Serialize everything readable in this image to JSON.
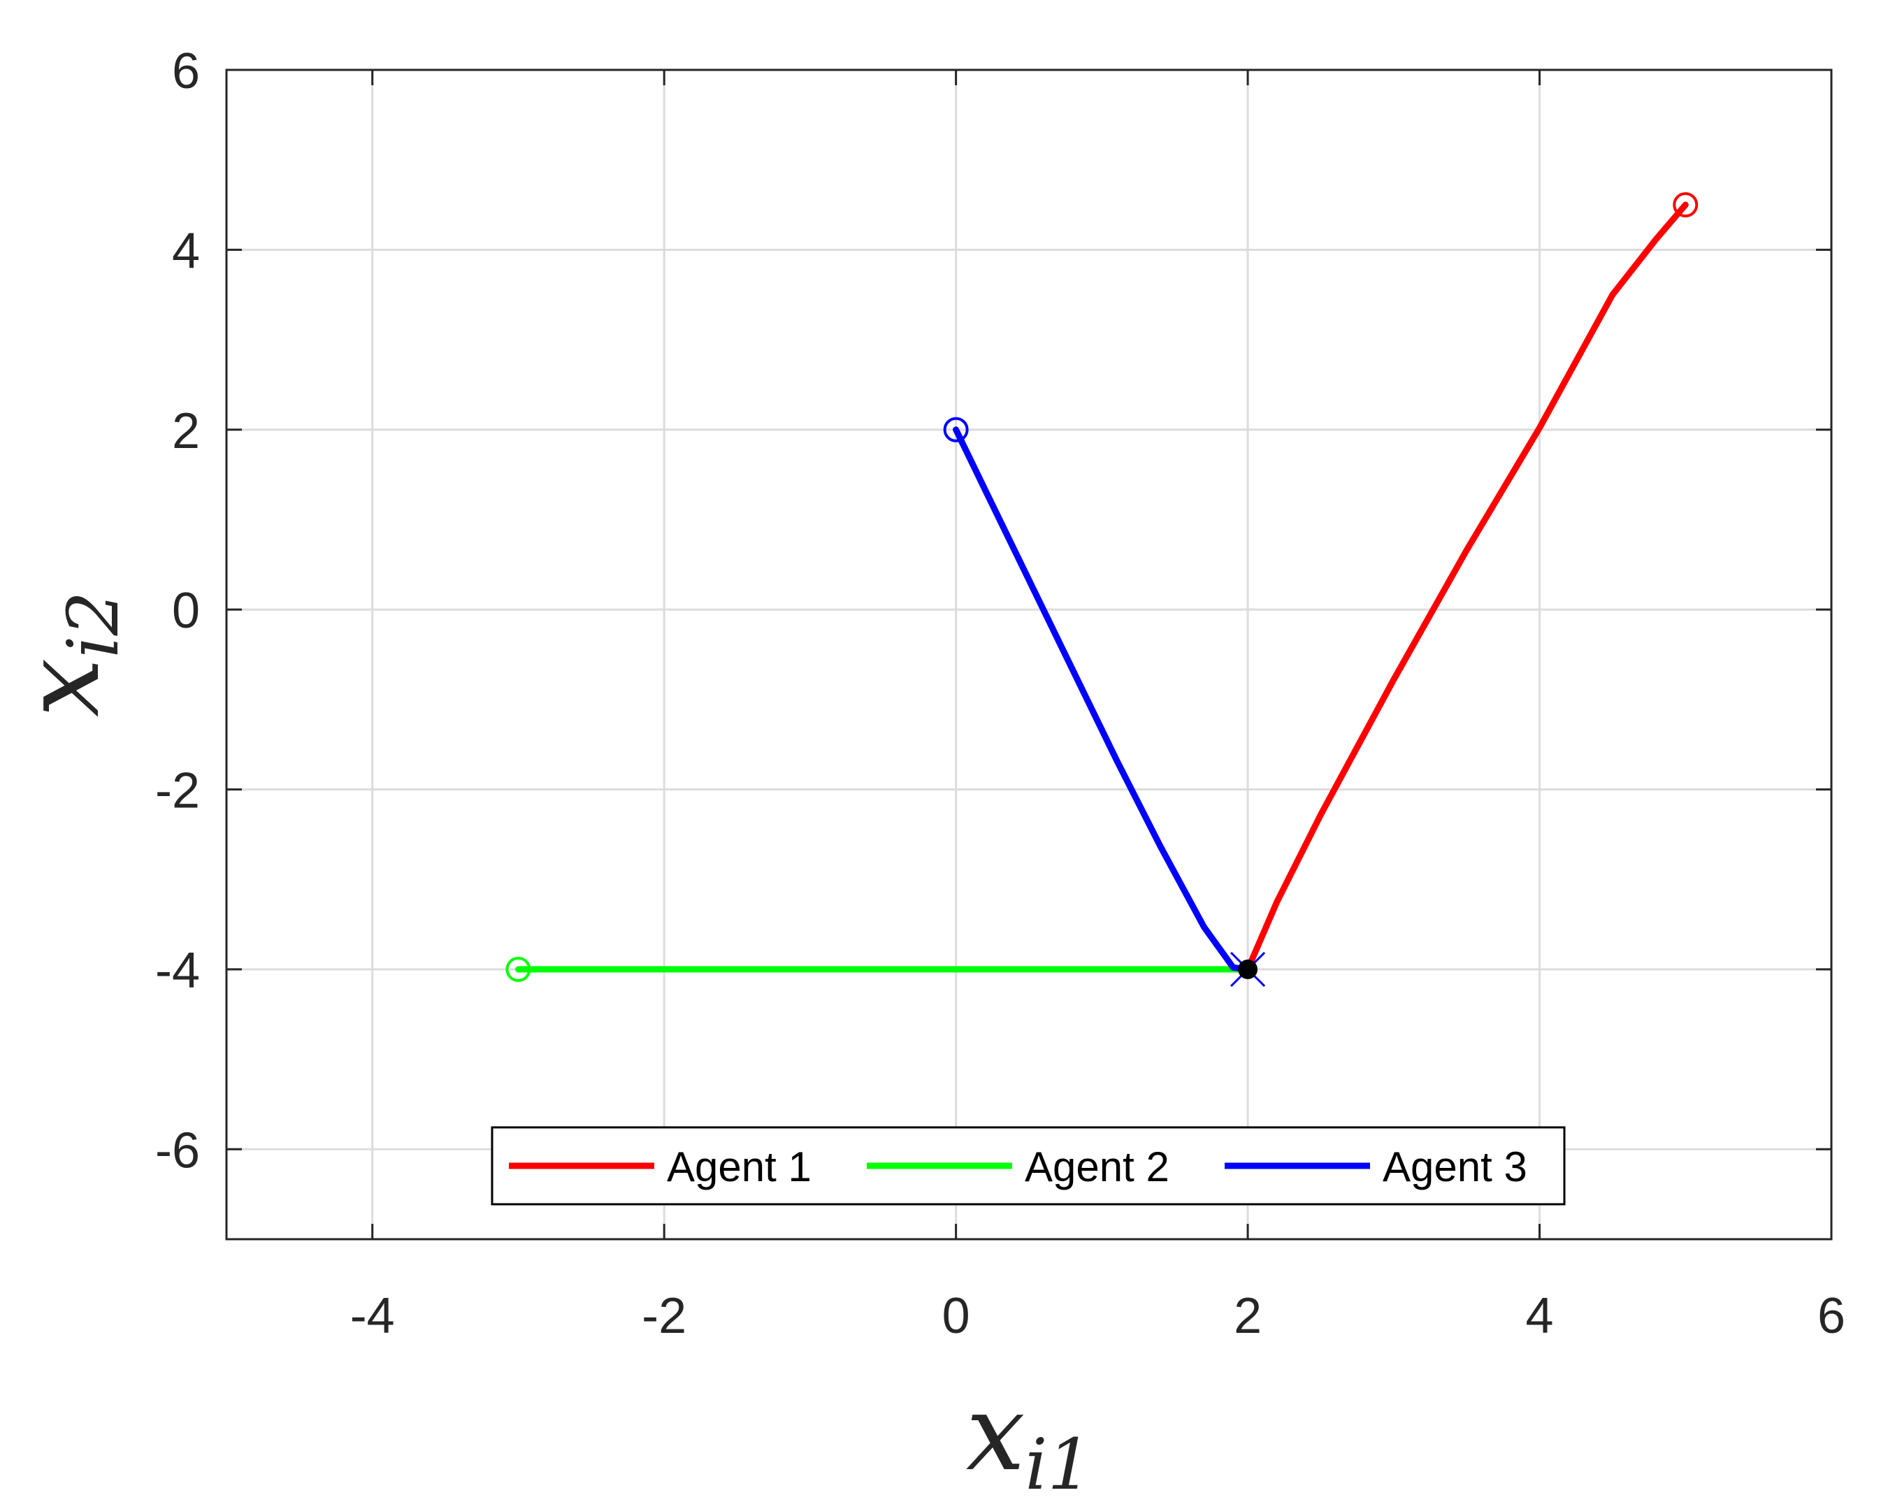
{
  "chart_data": {
    "type": "line",
    "xlabel": {
      "base": "x",
      "sub": "i1"
    },
    "ylabel": {
      "base": "x",
      "sub": "i2"
    },
    "xlim": [
      -5,
      6
    ],
    "ylim": [
      -7,
      6
    ],
    "xticks": [
      -4,
      -2,
      0,
      2,
      4,
      6
    ],
    "yticks": [
      -6,
      -4,
      -2,
      0,
      2,
      4,
      6
    ],
    "xtick_labels": [
      "-4",
      "-2",
      "0",
      "2",
      "4",
      "6"
    ],
    "ytick_labels": [
      "-6",
      "-4",
      "-2",
      "0",
      "2",
      "4",
      "6"
    ],
    "grid": true,
    "legend_position": "bottom-center",
    "series": [
      {
        "name": "Agent 1",
        "color": "#ff0000",
        "x": [
          5.0,
          4.8,
          4.5,
          4.0,
          3.5,
          3.0,
          2.5,
          2.2,
          2.0
        ],
        "y": [
          4.5,
          4.12,
          3.5,
          2.02,
          0.66,
          -0.78,
          -2.28,
          -3.25,
          -4.0
        ]
      },
      {
        "name": "Agent 2",
        "color": "#00ff00",
        "x": [
          -3.0,
          -1.0,
          1.0,
          2.0
        ],
        "y": [
          -4.0,
          -4.0,
          -4.0,
          -4.0
        ]
      },
      {
        "name": "Agent 3",
        "color": "#0000ff",
        "x": [
          0.0,
          0.2,
          0.5,
          0.8,
          1.1,
          1.4,
          1.7,
          1.9,
          2.0
        ],
        "y": [
          2.0,
          1.33,
          0.33,
          -0.67,
          -1.67,
          -2.63,
          -3.53,
          -3.98,
          -4.0
        ]
      }
    ],
    "annotations": [
      {
        "kind": "start-marker",
        "series": 0,
        "x": 5,
        "y": 4.5
      },
      {
        "kind": "start-marker",
        "series": 1,
        "x": -3,
        "y": -4
      },
      {
        "kind": "start-marker",
        "series": 2,
        "x": 0,
        "y": 2
      },
      {
        "kind": "end-marker",
        "color": "#000000",
        "x": 2,
        "y": -4
      }
    ]
  }
}
